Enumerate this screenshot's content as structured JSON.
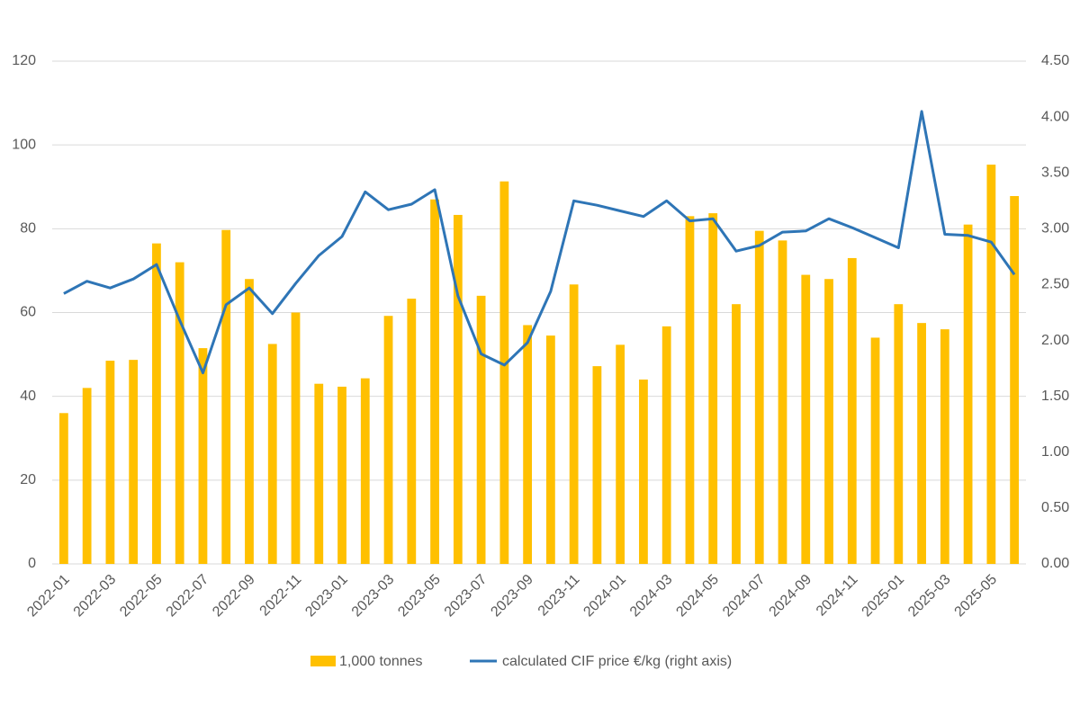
{
  "chart_data": {
    "type": "bar_line",
    "categories": [
      "2022-01",
      null,
      "2022-03",
      null,
      "2022-05",
      null,
      "2022-07",
      null,
      "2022-09",
      null,
      "2022-11",
      null,
      "2023-01",
      null,
      "2023-03",
      null,
      "2023-05",
      null,
      "2023-07",
      null,
      "2023-09",
      null,
      "2023-11",
      null,
      "2024-01",
      null,
      "2024-03",
      null,
      "2024-05",
      null,
      "2024-07",
      null,
      "2024-09",
      null,
      "2024-11",
      null,
      "2025-01",
      null,
      "2025-03",
      null,
      "2025-05",
      null
    ],
    "series": [
      {
        "name": "1,000 tonnes",
        "type": "bar",
        "color": "#ffc000",
        "values": [
          36,
          42,
          48.5,
          48.7,
          76.5,
          72,
          51.5,
          79.7,
          68,
          52.5,
          60,
          43,
          42.3,
          44.3,
          59.2,
          63.3,
          87,
          83.3,
          64,
          91.3,
          57,
          54.5,
          66.7,
          47.2,
          52.3,
          44,
          56.7,
          83,
          83.7,
          62,
          79.5,
          77.2,
          69,
          68,
          73,
          54,
          62,
          57.5,
          56,
          81,
          95.3,
          87.8
        ]
      },
      {
        "name": "calculated CIF price €/kg (right axis)",
        "type": "line",
        "color": "#2e75b6",
        "axis": "y2",
        "values": [
          2.42,
          2.53,
          2.47,
          2.55,
          2.68,
          2.18,
          1.71,
          2.32,
          2.47,
          2.24,
          2.51,
          2.76,
          2.93,
          3.33,
          3.17,
          3.22,
          3.35,
          2.4,
          1.88,
          1.78,
          1.98,
          2.44,
          3.25,
          3.21,
          3.16,
          3.11,
          3.25,
          3.07,
          3.09,
          2.8,
          2.85,
          2.97,
          2.98,
          3.09,
          3.01,
          2.92,
          2.83,
          4.05,
          2.95,
          2.94,
          2.88,
          2.59
        ]
      }
    ],
    "ylim": [
      0,
      120
    ],
    "yticks": [
      0,
      20,
      40,
      60,
      80,
      100,
      120
    ],
    "y2lim": [
      0,
      4.5
    ],
    "y2ticks": [
      {
        "value": 0,
        "label": "0.00"
      },
      {
        "value": 0.5,
        "label": "0.50"
      },
      {
        "value": 1,
        "label": "1.00"
      },
      {
        "value": 1.5,
        "label": "1.50"
      },
      {
        "value": 2,
        "label": "2.00"
      },
      {
        "value": 2.5,
        "label": "2.50"
      },
      {
        "value": 3,
        "label": "3.00"
      },
      {
        "value": 3.5,
        "label": "3.50"
      },
      {
        "value": 4,
        "label": "4.00"
      },
      {
        "value": 4.5,
        "label": "4.50"
      }
    ],
    "grid": true,
    "legend": "bottom"
  }
}
